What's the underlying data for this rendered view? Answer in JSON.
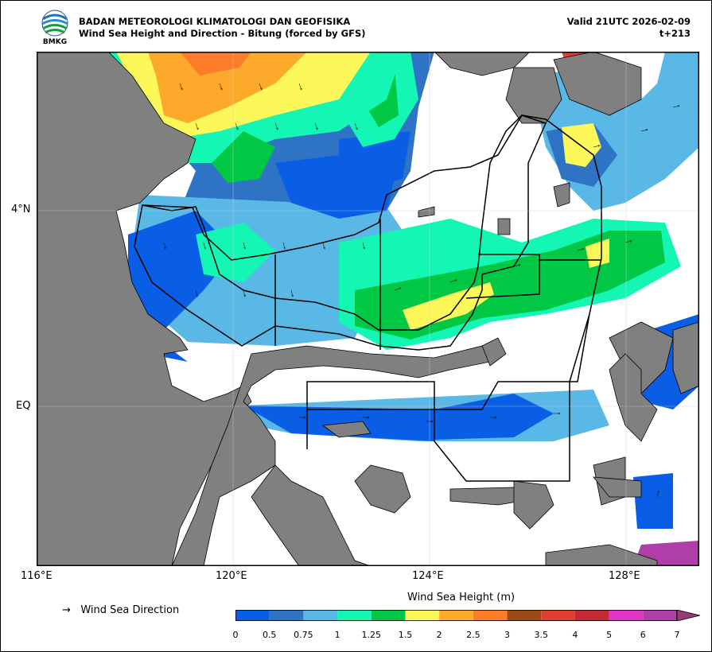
{
  "header": {
    "logo_text": "BMKG",
    "agency": "BADAN METEOROLOGI KLIMATOLOGI DAN GEOFISIKA",
    "subtitle": "Wind Sea Height and Direction - Bitung (forced by GFS)",
    "valid": "Valid 21UTC 2026-02-09",
    "lead": "t+213"
  },
  "axes": {
    "x_ticks": [
      "116°E",
      "120°E",
      "124°E",
      "128°E"
    ],
    "y_ticks": [
      "4°N",
      "EQ"
    ]
  },
  "legend": {
    "arrow": "→",
    "direction_label": "Wind Sea Direction"
  },
  "colorbar": {
    "title": "Wind Sea Height (m)",
    "levels": [
      "0",
      "0.5",
      "0.75",
      "1",
      "1.25",
      "1.5",
      "2",
      "2.5",
      "3",
      "3.5",
      "4",
      "5",
      "6",
      "7"
    ],
    "colors": [
      "#0a5ee6",
      "#2f74c4",
      "#5ab8e6",
      "#14f7b4",
      "#00c844",
      "#fdf85a",
      "#fdaa2c",
      "#fc7c2a",
      "#9b4a15",
      "#e04032",
      "#c42a36",
      "#e236c8",
      "#b03ea8",
      "#9a3a72"
    ]
  },
  "colors": {
    "land": "#808080",
    "sea_blank": "#ffffff",
    "boundary": "#000000"
  }
}
